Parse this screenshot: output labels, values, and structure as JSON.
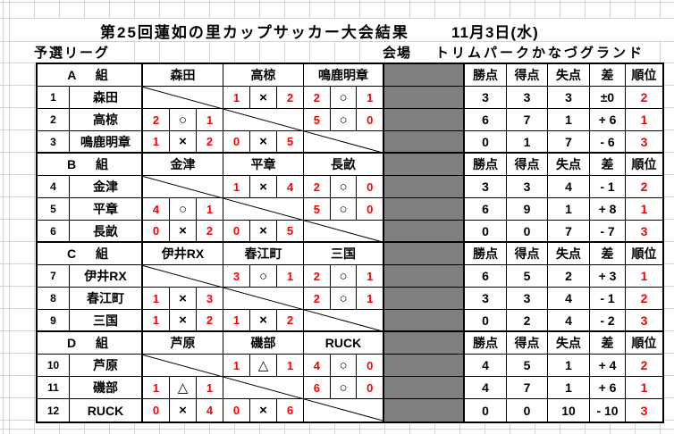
{
  "page": {
    "title": "第25回蓮如の里カップサッカー大会結果",
    "date": "11月3日(水)",
    "league_label": "予選リーグ",
    "venue_label": "会場",
    "venue_name": "トリムパークかなづグランド"
  },
  "colors": {
    "score_red": "#ff0000",
    "gray_fill": "#808080",
    "grid_line": "#d2d6db",
    "table_border": "#000000"
  },
  "table": {
    "stats_headers": [
      "勝点",
      "得点",
      "失点",
      "差",
      "順位"
    ],
    "marks_legend": {
      "win": "○",
      "loss": "×",
      "draw": "△"
    },
    "groups": [
      {
        "label": "A　組",
        "teams": [
          "森田",
          "高椋",
          "鳴鹿明章"
        ],
        "rows": [
          {
            "no": "1",
            "team": "森田",
            "cells": [
              null,
              [
                "1",
                "×",
                "2"
              ],
              [
                "2",
                "○",
                "1"
              ]
            ],
            "stats": [
              "3",
              "3",
              "3",
              "±0",
              "2"
            ]
          },
          {
            "no": "2",
            "team": "高椋",
            "cells": [
              [
                "2",
                "○",
                "1"
              ],
              null,
              [
                "5",
                "○",
                "0"
              ]
            ],
            "stats": [
              "6",
              "7",
              "1",
              "+ 6",
              "1"
            ]
          },
          {
            "no": "3",
            "team": "鳴鹿明章",
            "cells": [
              [
                "1",
                "×",
                "2"
              ],
              [
                "0",
                "×",
                "5"
              ],
              null
            ],
            "stats": [
              "0",
              "1",
              "7",
              "- 6",
              "3"
            ]
          }
        ]
      },
      {
        "label": "B　組",
        "teams": [
          "金津",
          "平章",
          "長畝"
        ],
        "rows": [
          {
            "no": "4",
            "team": "金津",
            "cells": [
              null,
              [
                "1",
                "×",
                "4"
              ],
              [
                "2",
                "○",
                "0"
              ]
            ],
            "stats": [
              "3",
              "3",
              "4",
              "- 1",
              "2"
            ]
          },
          {
            "no": "5",
            "team": "平章",
            "cells": [
              [
                "4",
                "○",
                "1"
              ],
              null,
              [
                "5",
                "○",
                "0"
              ]
            ],
            "stats": [
              "6",
              "9",
              "1",
              "+ 8",
              "1"
            ]
          },
          {
            "no": "6",
            "team": "長畝",
            "cells": [
              [
                "0",
                "×",
                "2"
              ],
              [
                "0",
                "×",
                "5"
              ],
              null
            ],
            "stats": [
              "0",
              "0",
              "7",
              "- 7",
              "3"
            ]
          }
        ]
      },
      {
        "label": "C　組",
        "teams": [
          "伊井RX",
          "春江町",
          "三国"
        ],
        "rows": [
          {
            "no": "7",
            "team": "伊井RX",
            "cells": [
              null,
              [
                "3",
                "○",
                "1"
              ],
              [
                "2",
                "○",
                "1"
              ]
            ],
            "stats": [
              "6",
              "5",
              "2",
              "+ 3",
              "1"
            ]
          },
          {
            "no": "8",
            "team": "春江町",
            "cells": [
              [
                "1",
                "×",
                "3"
              ],
              null,
              [
                "2",
                "○",
                "1"
              ]
            ],
            "stats": [
              "3",
              "3",
              "4",
              "- 1",
              "2"
            ]
          },
          {
            "no": "9",
            "team": "三国",
            "cells": [
              [
                "1",
                "×",
                "2"
              ],
              [
                "1",
                "×",
                "2"
              ],
              null
            ],
            "stats": [
              "0",
              "2",
              "4",
              "- 2",
              "3"
            ]
          }
        ]
      },
      {
        "label": "D　組",
        "teams": [
          "芦原",
          "磯部",
          "RUCK"
        ],
        "rows": [
          {
            "no": "10",
            "team": "芦原",
            "cells": [
              null,
              [
                "1",
                "△",
                "1"
              ],
              [
                "4",
                "○",
                "0"
              ]
            ],
            "stats": [
              "4",
              "5",
              "1",
              "+ 4",
              "2"
            ]
          },
          {
            "no": "11",
            "team": "磯部",
            "cells": [
              [
                "1",
                "△",
                "1"
              ],
              null,
              [
                "6",
                "○",
                "0"
              ]
            ],
            "stats": [
              "4",
              "7",
              "1",
              "+ 6",
              "1"
            ]
          },
          {
            "no": "12",
            "team": "RUCK",
            "cells": [
              [
                "0",
                "×",
                "4"
              ],
              [
                "0",
                "×",
                "6"
              ],
              null
            ],
            "stats": [
              "0",
              "0",
              "10",
              "- 10",
              "3"
            ]
          }
        ]
      }
    ]
  }
}
